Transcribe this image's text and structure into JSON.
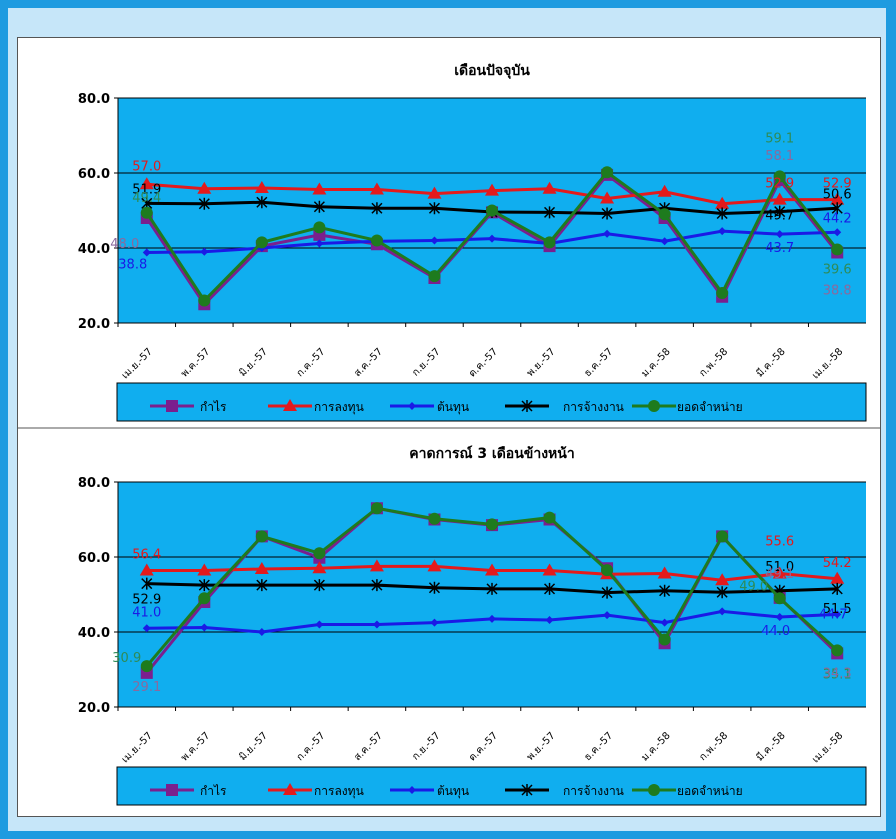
{
  "chart_data": [
    {
      "type": "line",
      "title": "เดือนปัจจุบัน",
      "ylim": [
        20,
        80
      ],
      "yticks": [
        "20.0",
        "40.0",
        "60.0",
        "80.0"
      ],
      "categories": [
        "เม.ย.-57",
        "พ.ค.-57",
        "มิ.ย.-57",
        "ก.ค.-57",
        "ส.ค.-57",
        "ก.ย.-57",
        "ต.ค.-57",
        "พ.ย.-57",
        "ธ.ค.-57",
        "ม.ค.-58",
        "ก.พ.-58",
        "มี.ค.-58",
        "เม.ย.-58"
      ],
      "grid": true,
      "legend_position": "bottom",
      "series": [
        {
          "name": "กำไร",
          "color": "#7B1F8E",
          "label_color": "#8A6A9E",
          "marker": "square",
          "values": [
            48.0,
            25.0,
            40.5,
            43.5,
            41.0,
            32.0,
            49.5,
            40.5,
            59.5,
            48.0,
            27.0,
            58.1,
            38.8
          ]
        },
        {
          "name": "การลงทุน",
          "color": "#E31A1C",
          "label_color": "#E31A1C",
          "marker": "triangle",
          "values": [
            57.0,
            55.8,
            56.0,
            55.6,
            55.6,
            54.5,
            55.3,
            55.8,
            53.2,
            55.0,
            51.8,
            52.9,
            52.9
          ]
        },
        {
          "name": "ต้นทุน",
          "color": "#1A1AE6",
          "label_color": "#1A1AE6",
          "marker": "diamond",
          "values": [
            38.8,
            39.0,
            40.0,
            41.2,
            41.8,
            42.0,
            42.5,
            41.2,
            43.8,
            41.8,
            44.5,
            43.7,
            44.2
          ]
        },
        {
          "name": "การจ้างงาน",
          "color": "#000000",
          "label_color": "#000000",
          "marker": "star",
          "values": [
            51.9,
            51.8,
            52.2,
            51.0,
            50.6,
            50.6,
            49.6,
            49.5,
            49.2,
            50.6,
            49.2,
            49.7,
            50.6
          ]
        },
        {
          "name": "ยอดจำหน่าย",
          "color": "#1E7B1E",
          "label_color": "#2E8B57",
          "marker": "circle",
          "values": [
            49.4,
            26.0,
            41.5,
            45.5,
            42.0,
            32.5,
            50.0,
            41.5,
            60.2,
            49.0,
            28.0,
            59.1,
            39.6
          ]
        }
      ],
      "data_labels": [
        {
          "text": "57.0",
          "series": 1,
          "index": 0,
          "dy": -14
        },
        {
          "text": "51.9",
          "series": 3,
          "index": 0,
          "dy": -10
        },
        {
          "text": "49.4",
          "series": 4,
          "index": 0,
          "dy": -11
        },
        {
          "text": "48.0",
          "series": 0,
          "index": 0,
          "dy": 30,
          "dx": -22
        },
        {
          "text": "38.8",
          "series": 2,
          "index": 0,
          "dy": 16,
          "dx": -14
        },
        {
          "text": "59.1",
          "series": 4,
          "index": 11,
          "dy": -34
        },
        {
          "text": "58.1",
          "series": 0,
          "index": 11,
          "dy": -20
        },
        {
          "text": "52.9",
          "series": 1,
          "index": 11,
          "dy": -12
        },
        {
          "text": "49.7",
          "series": 3,
          "index": 11,
          "dy": 8
        },
        {
          "text": "43.7",
          "series": 2,
          "index": 11,
          "dy": 18
        },
        {
          "text": "52.9",
          "series": 1,
          "index": 12,
          "dy": -12
        },
        {
          "text": "50.6",
          "series": 3,
          "index": 12,
          "dy": -10
        },
        {
          "text": "44.2",
          "series": 2,
          "index": 12,
          "dy": -10
        },
        {
          "text": "39.6",
          "series": 4,
          "index": 12,
          "dy": 24
        },
        {
          "text": "38.8",
          "series": 0,
          "index": 12,
          "dy": 42
        }
      ]
    },
    {
      "type": "line",
      "title": "คาดการณ์ 3 เดือนข้างหน้า",
      "ylim": [
        20,
        80
      ],
      "yticks": [
        "20.0",
        "40.0",
        "60.0",
        "80.0"
      ],
      "categories": [
        "เม.ย.-57",
        "พ.ค.-57",
        "มิ.ย.-57",
        "ก.ค.-57",
        "ส.ค.-57",
        "ก.ย.-57",
        "ต.ค.-57",
        "พ.ย.-57",
        "ธ.ค.-57",
        "ม.ค.-58",
        "ก.พ.-58",
        "มี.ค.-58",
        "เม.ย.-58"
      ],
      "grid": true,
      "legend_position": "bottom",
      "series": [
        {
          "name": "กำไร",
          "color": "#7B1F8E",
          "label_color": "#8A6A9E",
          "marker": "square",
          "values": [
            29.1,
            48.0,
            65.5,
            59.8,
            73.0,
            70.0,
            68.5,
            70.0,
            57.0,
            37.0,
            65.5,
            49.1,
            34.3
          ]
        },
        {
          "name": "การลงทุน",
          "color": "#E31A1C",
          "label_color": "#E31A1C",
          "marker": "triangle",
          "values": [
            56.4,
            56.4,
            56.8,
            57.0,
            57.5,
            57.5,
            56.4,
            56.4,
            55.4,
            55.6,
            53.8,
            55.6,
            54.2
          ]
        },
        {
          "name": "ต้นทุน",
          "color": "#1A1AE6",
          "label_color": "#1A1AE6",
          "marker": "diamond",
          "values": [
            41.0,
            41.2,
            40.0,
            42.0,
            42.0,
            42.5,
            43.5,
            43.2,
            44.5,
            42.5,
            45.5,
            44.0,
            44.7
          ]
        },
        {
          "name": "การจ้างงาน",
          "color": "#000000",
          "label_color": "#000000",
          "marker": "star",
          "values": [
            52.9,
            52.5,
            52.5,
            52.5,
            52.5,
            51.8,
            51.5,
            51.5,
            50.5,
            51.0,
            50.6,
            51.0,
            51.5
          ]
        },
        {
          "name": "ยอดจำหน่าย",
          "color": "#1E7B1E",
          "label_color": "#2E8B57",
          "marker": "circle",
          "values": [
            30.9,
            49.0,
            65.5,
            61.0,
            73.0,
            70.2,
            68.7,
            70.5,
            56.5,
            38.0,
            65.5,
            49.0,
            35.1
          ]
        }
      ],
      "data_labels": [
        {
          "text": "56.4",
          "series": 1,
          "index": 0,
          "dy": -12
        },
        {
          "text": "52.9",
          "series": 3,
          "index": 0,
          "dy": 20
        },
        {
          "text": "41.0",
          "series": 2,
          "index": 0,
          "dy": -12
        },
        {
          "text": "30.9",
          "series": 4,
          "index": 0,
          "dy": -4,
          "dx": -20
        },
        {
          "text": "29.1",
          "series": 0,
          "index": 0,
          "dy": 18
        },
        {
          "text": "55.6",
          "series": 1,
          "index": 11,
          "dy": -28
        },
        {
          "text": "51.0",
          "series": 3,
          "index": 11,
          "dy": -20
        },
        {
          "text": "49.1",
          "series": 0,
          "index": 11,
          "dy": -20
        },
        {
          "text": "49.0",
          "series": 4,
          "index": 11,
          "dy": -8,
          "dx": -26
        },
        {
          "text": "44.0",
          "series": 2,
          "index": 11,
          "dy": 18,
          "dx": -4
        },
        {
          "text": "54.2",
          "series": 1,
          "index": 12,
          "dy": -12
        },
        {
          "text": "51.5",
          "series": 3,
          "index": 12,
          "dy": 24
        },
        {
          "text": "44.7",
          "series": 2,
          "index": 12,
          "dy": 4,
          "dx": -4
        },
        {
          "text": "35.1",
          "series": 4,
          "index": 12,
          "dy": 28
        },
        {
          "text": "34.3",
          "series": 0,
          "index": 12,
          "dy": 24
        }
      ]
    }
  ],
  "colors": {
    "page_border": "#1E9BE0",
    "page_fill": "#C6E6F9",
    "plot_fill": "#10AEEF",
    "legend_fill": "#10AEEF"
  }
}
